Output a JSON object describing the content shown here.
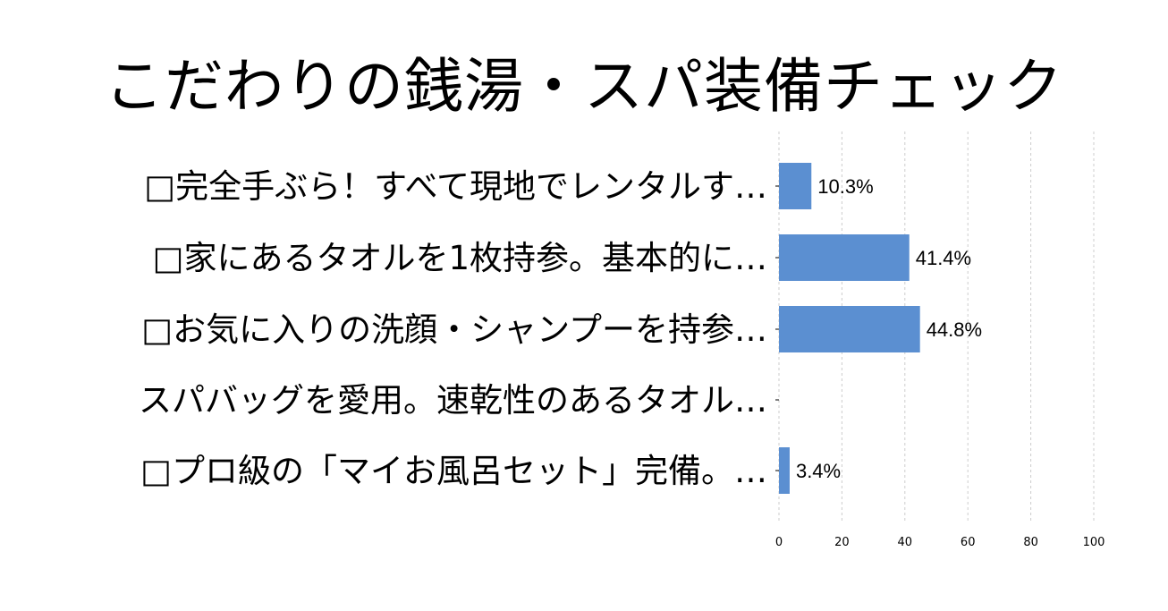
{
  "chart_data": {
    "type": "bar",
    "orientation": "horizontal",
    "title": "こだわりの銭湯・スパ装備チェック",
    "categories": [
      "□完全手ぶら！すべて現地でレンタルす…",
      "□家にあるタオルを1枚持参。基本的に…",
      "□お気に入りの洗顔・シャンプーを持参…",
      "スパバッグを愛用。速乾性のあるタオル…",
      "□プロ級の「マイお風呂セット」完備。…"
    ],
    "values": [
      10.3,
      41.4,
      44.8,
      0,
      3.4
    ],
    "data_labels": [
      "10.3%",
      "41.4%",
      "44.8%",
      "",
      "3.4%"
    ],
    "xlim": [
      0,
      100
    ],
    "xticks": [
      "0",
      "20",
      "40",
      "60",
      "80",
      "100"
    ],
    "grid": "vertical dashed",
    "xlabel": "",
    "ylabel": ""
  },
  "colors": {
    "bar": "#5b8fd1",
    "grid": "#cccccc",
    "axis": "#000000"
  }
}
